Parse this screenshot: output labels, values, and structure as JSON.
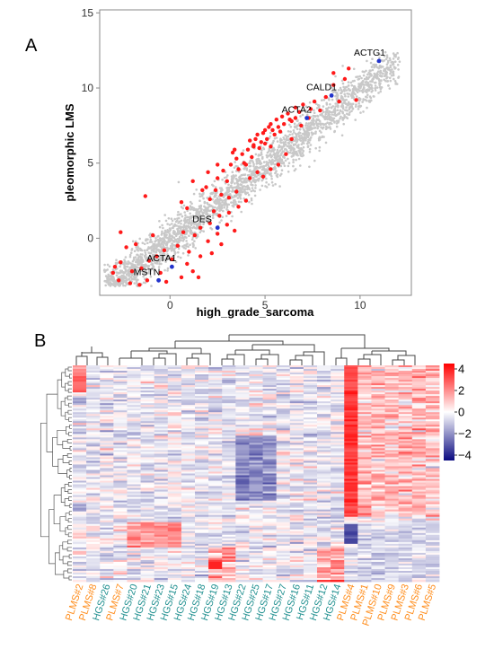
{
  "panels": {
    "a": "A",
    "b": "B"
  },
  "colors": {
    "background_points": "#c8c8c8",
    "highlight_points": "#ff1a1a",
    "labeled_points": "#2233cc",
    "plms_label": "#ff8c1a",
    "hgs_label": "#1f8f8f",
    "heat_high": "#ff0000",
    "heat_mid": "#ffffff",
    "heat_low": "#0a0a80"
  },
  "chart_data": [
    {
      "type": "scatter",
      "title": "",
      "xlabel": "high_grade_sarcoma",
      "ylabel": "pleomorphic LMS",
      "xlim": [
        -3.7,
        12.7
      ],
      "ylim": [
        -3.8,
        15.2
      ],
      "xticks": [
        0,
        5,
        10
      ],
      "yticks": [
        0,
        5,
        10,
        15
      ],
      "grid": false,
      "legend": "none",
      "background_cloud": "dense gray scatter along the diagonal from about (-3, -3) to (12, 12)",
      "highlighted_points": [
        [
          6.2,
          8.3
        ],
        [
          6.6,
          8.7
        ],
        [
          7.0,
          8.9
        ],
        [
          7.6,
          9.1
        ],
        [
          8.2,
          9.4
        ],
        [
          8.6,
          10.2
        ],
        [
          9.2,
          10.6
        ],
        [
          5.0,
          7.2
        ],
        [
          5.3,
          7.6
        ],
        [
          5.6,
          7.9
        ],
        [
          5.9,
          8.1
        ],
        [
          6.4,
          7.8
        ],
        [
          6.8,
          8.4
        ],
        [
          7.3,
          8.0
        ],
        [
          4.2,
          6.5
        ],
        [
          4.6,
          6.9
        ],
        [
          4.9,
          7.0
        ],
        [
          5.1,
          6.6
        ],
        [
          5.4,
          7.2
        ],
        [
          5.7,
          7.4
        ],
        [
          6.0,
          7.6
        ],
        [
          6.3,
          7.9
        ],
        [
          6.6,
          8.0
        ],
        [
          4.4,
          6.2
        ],
        [
          4.8,
          6.4
        ],
        [
          5.2,
          7.4
        ],
        [
          5.5,
          6.9
        ],
        [
          5.8,
          7.1
        ],
        [
          3.8,
          5.6
        ],
        [
          4.1,
          5.9
        ],
        [
          4.4,
          6.1
        ],
        [
          4.7,
          6.0
        ],
        [
          5.0,
          6.3
        ],
        [
          3.5,
          5.3
        ],
        [
          3.9,
          5.0
        ],
        [
          4.3,
          5.4
        ],
        [
          3.2,
          4.9
        ],
        [
          3.6,
          4.6
        ],
        [
          4.0,
          4.9
        ],
        [
          3.4,
          5.9
        ],
        [
          4.5,
          6.6
        ],
        [
          5.3,
          6.1
        ],
        [
          2.5,
          4.0
        ],
        [
          2.8,
          4.5
        ],
        [
          3.0,
          3.8
        ],
        [
          2.4,
          3.2
        ],
        [
          2.7,
          2.9
        ],
        [
          3.1,
          2.7
        ],
        [
          3.5,
          3.1
        ],
        [
          4.2,
          4.0
        ],
        [
          4.6,
          4.4
        ],
        [
          4.9,
          4.1
        ],
        [
          5.3,
          4.6
        ],
        [
          5.7,
          4.9
        ],
        [
          6.1,
          5.6
        ],
        [
          6.4,
          6.6
        ],
        [
          1.2,
          3.8
        ],
        [
          1.7,
          3.2
        ],
        [
          2.1,
          2.6
        ],
        [
          0.9,
          2.0
        ],
        [
          2.3,
          1.8
        ],
        [
          2.6,
          1.5
        ],
        [
          3.1,
          1.7
        ],
        [
          3.6,
          2.1
        ],
        [
          4.0,
          2.5
        ],
        [
          1.6,
          0.7
        ],
        [
          2.1,
          1.0
        ],
        [
          2.5,
          0.3
        ],
        [
          3.0,
          0.9
        ],
        [
          3.4,
          0.5
        ],
        [
          1.3,
          0.2
        ],
        [
          2.0,
          -0.2
        ],
        [
          2.7,
          -0.4
        ],
        [
          0.7,
          0.4
        ],
        [
          0.4,
          -0.5
        ],
        [
          1.0,
          -0.9
        ],
        [
          1.6,
          -1.2
        ],
        [
          2.2,
          -1.0
        ],
        [
          -0.3,
          -0.8
        ],
        [
          -0.7,
          -1.2
        ],
        [
          0.1,
          -1.4
        ],
        [
          -1.1,
          -1.5
        ],
        [
          -1.5,
          -2.0
        ],
        [
          -2.0,
          -2.2
        ],
        [
          -2.6,
          -1.6
        ],
        [
          -2.9,
          -1.9
        ],
        [
          -2.3,
          -0.6
        ],
        [
          -1.8,
          -0.4
        ],
        [
          -0.9,
          0.2
        ],
        [
          -0.5,
          -2.3
        ],
        [
          -1.2,
          -2.8
        ],
        [
          -2.1,
          -3.0
        ],
        [
          -1.6,
          -3.1
        ],
        [
          0.6,
          -2.6
        ],
        [
          1.2,
          -2.2
        ],
        [
          0.9,
          -1.7
        ],
        [
          -0.2,
          -2.9
        ],
        [
          1.5,
          -2.6
        ],
        [
          -3.0,
          -2.3
        ],
        [
          -2.7,
          -2.8
        ],
        [
          8.6,
          11.0
        ],
        [
          9.4,
          11.3
        ],
        [
          9.8,
          9.2
        ],
        [
          7.9,
          8.5
        ],
        [
          7.4,
          8.6
        ],
        [
          8.9,
          9.1
        ],
        [
          6.9,
          7.5
        ],
        [
          -1.3,
          2.8
        ],
        [
          -2.6,
          0.4
        ],
        [
          0.6,
          2.4
        ],
        [
          1.9,
          3.4
        ],
        [
          2.0,
          4.4
        ],
        [
          2.5,
          4.9
        ],
        [
          3.3,
          5.7
        ]
      ],
      "labeled_points": [
        {
          "label": "ACTG1",
          "x": 11.0,
          "y": 11.8
        },
        {
          "label": "CALD1",
          "x": 8.5,
          "y": 9.5
        },
        {
          "label": "ACTA2",
          "x": 7.2,
          "y": 8.0
        },
        {
          "label": "DES",
          "x": 2.5,
          "y": 0.7
        },
        {
          "label": "ACTA1",
          "x": 0.1,
          "y": -1.9
        },
        {
          "label": "MSTN",
          "x": -0.6,
          "y": -2.8
        }
      ]
    },
    {
      "type": "heatmap",
      "title": "",
      "columns": [
        "PLMS#2",
        "PLMS#8",
        "HGS#26",
        "PLMS#7",
        "HGS#20",
        "HGS#21",
        "HGS#23",
        "HGS#15",
        "HGS#24",
        "HGS#18",
        "HGS#19",
        "HGS#13",
        "HGS#22",
        "HGS#25",
        "HGS#17",
        "HGS#27",
        "HGS#16",
        "HGS#11",
        "HGS#12",
        "HGS#14",
        "PLMS#4",
        "PLMS#1",
        "PLMS#10",
        "PLMS#9",
        "PLMS#3",
        "PLMS#6",
        "PLMS#5"
      ],
      "column_group": [
        "PLMS",
        "PLMS",
        "HGS",
        "PLMS",
        "HGS",
        "HGS",
        "HGS",
        "HGS",
        "HGS",
        "HGS",
        "HGS",
        "HGS",
        "HGS",
        "HGS",
        "HGS",
        "HGS",
        "HGS",
        "HGS",
        "HGS",
        "HGS",
        "PLMS",
        "PLMS",
        "PLMS",
        "PLMS",
        "PLMS",
        "PLMS",
        "PLMS"
      ],
      "colorbar": {
        "ticks": [
          "4",
          "2",
          "0",
          "−2",
          "−4"
        ],
        "range": [
          -4.5,
          4.5
        ]
      },
      "value_summary": "z-scored expression; PLMS#4 strongly high (red) for upper rows, PLMS#1-#5 moderately high in upper block, HGS#20-#24 high in lower block, HGS#22/#25 low in middle"
    }
  ]
}
